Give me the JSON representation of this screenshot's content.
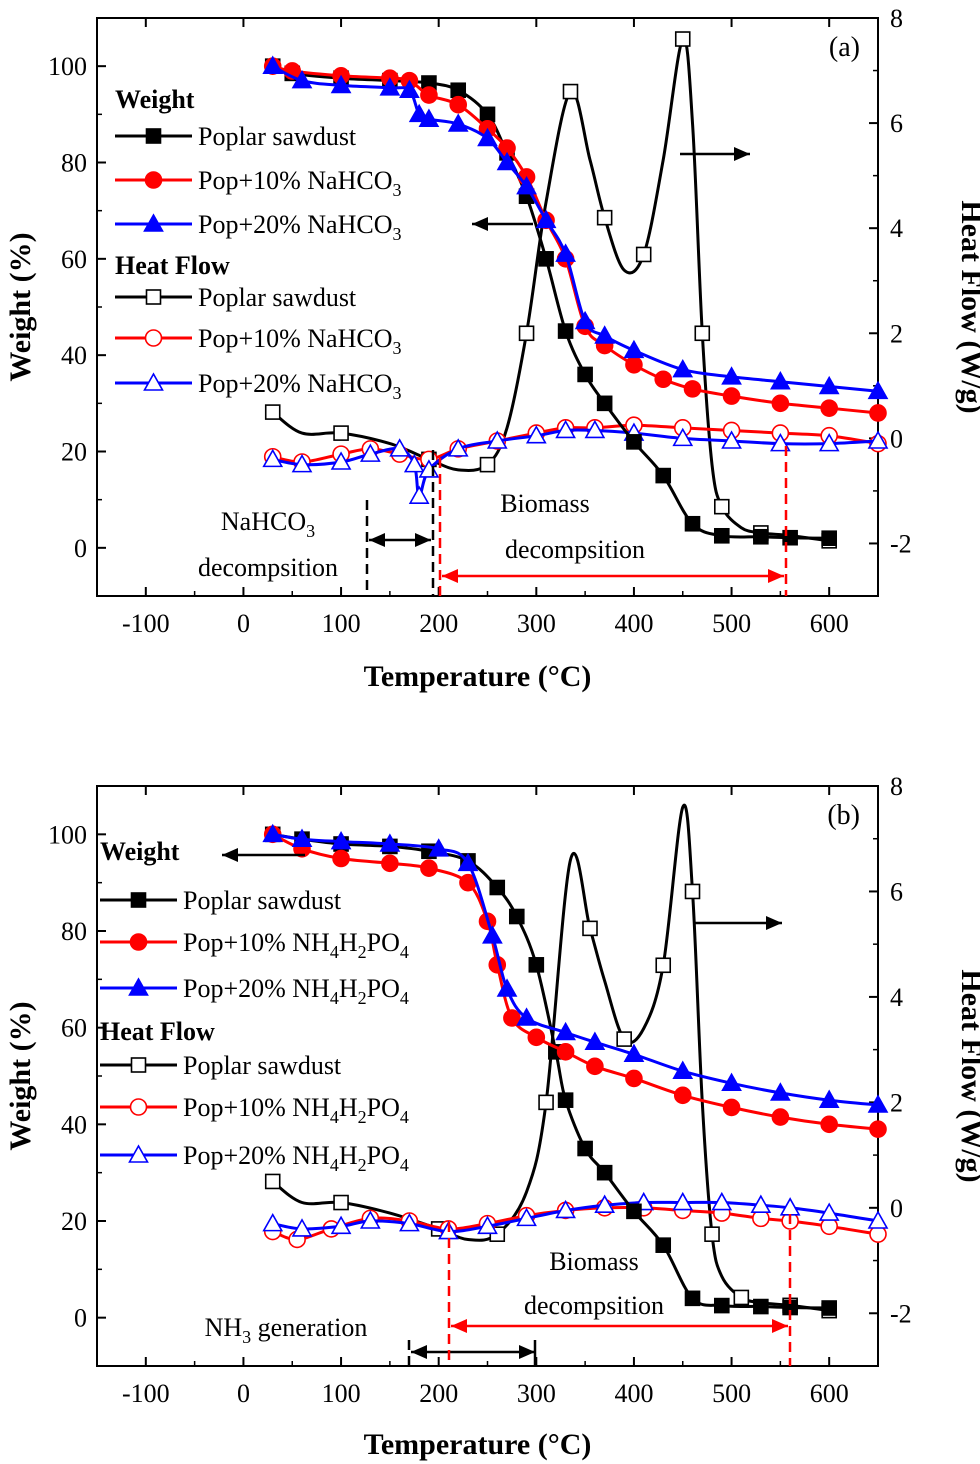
{
  "chart_data": [
    {
      "type": "line",
      "panel_label": "(a)",
      "xlabel": "Temperature (°C)",
      "ylabel": "Weight (%)",
      "y2label": "Heat Flow (W/g)",
      "xlim": [
        -150,
        650
      ],
      "ylim": [
        -10,
        110
      ],
      "y2lim": [
        -3,
        8
      ],
      "xticks": [
        "-100",
        "0",
        "100",
        "200",
        "300",
        "400",
        "500",
        "600"
      ],
      "yticks": [
        "0",
        "20",
        "40",
        "60",
        "80",
        "100"
      ],
      "y2ticks": [
        "-2",
        "0",
        "2",
        "4",
        "6",
        "8"
      ],
      "legend": {
        "weight_heading": "Weight",
        "heat_heading": "Heat Flow",
        "weight_entries": [
          "Poplar sawdust",
          "Pop+10% NaHCO",
          "Pop+20% NaHCO"
        ],
        "heat_entries": [
          "Poplar sawdust",
          "Pop+10% NaHCO",
          "Pop+20% NaHCO"
        ],
        "subscripts": [
          "",
          "3",
          "3"
        ]
      },
      "annotations": {
        "left_line1": "NaHCO",
        "left_line1_sub": "3",
        "left_line2": "decompsition",
        "right_line1": "Biomass",
        "right_line2": "decompsition"
      },
      "weight_series": [
        {
          "name": "Poplar sawdust",
          "color": "#000000",
          "marker": "square",
          "filled": true,
          "x": [
            30,
            50,
            100,
            150,
            190,
            220,
            250,
            270,
            290,
            310,
            330,
            350,
            370,
            400,
            430,
            460,
            490,
            530,
            560,
            600
          ],
          "y": [
            100,
            98.5,
            97.5,
            97,
            96.5,
            95,
            90,
            82,
            73,
            60,
            45,
            36,
            30,
            22,
            15,
            5,
            2.5,
            2.3,
            2.1,
            2
          ]
        },
        {
          "name": "Pop+10% NaHCO3",
          "color": "#ff0000",
          "marker": "circle",
          "filled": true,
          "x": [
            30,
            50,
            100,
            150,
            170,
            190,
            220,
            250,
            270,
            290,
            310,
            330,
            350,
            370,
            400,
            430,
            460,
            500,
            550,
            600,
            650
          ],
          "y": [
            100,
            99,
            98,
            97.5,
            97,
            94,
            92,
            87,
            83,
            77,
            68,
            60,
            46,
            42,
            38,
            35,
            33,
            31.5,
            30,
            29,
            28
          ]
        },
        {
          "name": "Pop+20% NaHCO3",
          "color": "#0000ff",
          "marker": "triangle",
          "filled": true,
          "x": [
            30,
            60,
            100,
            150,
            170,
            180,
            190,
            220,
            250,
            270,
            290,
            310,
            330,
            350,
            370,
            400,
            450,
            500,
            550,
            600,
            650
          ],
          "y": [
            100,
            97,
            96,
            95.5,
            95,
            90,
            89,
            88,
            85,
            80,
            75,
            68,
            61,
            47,
            44,
            41,
            37,
            35.5,
            34.5,
            33.5,
            32.5
          ]
        }
      ],
      "heat_series": [
        {
          "name": "Poplar sawdust",
          "color": "#000000",
          "marker": "square",
          "filled": false,
          "x": [
            30,
            60,
            100,
            150,
            190,
            220,
            250,
            270,
            290,
            310,
            335,
            355,
            370,
            390,
            410,
            430,
            450,
            460,
            470,
            480,
            490,
            510,
            530,
            560,
            600
          ],
          "y": [
            0.5,
            0.1,
            0.1,
            -0.1,
            -0.4,
            -0.6,
            -0.5,
            0.2,
            2,
            4.5,
            6.6,
            5.3,
            4.2,
            3.2,
            3.5,
            5.3,
            7.6,
            6.0,
            2.0,
            -0.5,
            -1.3,
            -1.7,
            -1.8,
            -1.85,
            -1.95
          ]
        },
        {
          "name": "Pop+10% NaHCO3",
          "color": "#ff0000",
          "marker": "circle",
          "filled": false,
          "x": [
            30,
            60,
            100,
            130,
            160,
            190,
            220,
            260,
            300,
            330,
            360,
            400,
            450,
            500,
            550,
            600,
            650
          ],
          "y": [
            -0.35,
            -0.45,
            -0.3,
            -0.2,
            -0.3,
            -0.4,
            -0.2,
            -0.05,
            0.1,
            0.2,
            0.2,
            0.25,
            0.2,
            0.15,
            0.1,
            0.05,
            -0.1
          ]
        },
        {
          "name": "Pop+20% NaHCO3",
          "color": "#0000ff",
          "marker": "triangle",
          "filled": false,
          "x": [
            30,
            60,
            100,
            130,
            160,
            175,
            180,
            190,
            220,
            260,
            300,
            330,
            360,
            400,
            450,
            500,
            550,
            600,
            650
          ],
          "y": [
            -0.4,
            -0.5,
            -0.45,
            -0.3,
            -0.2,
            -0.5,
            -1.1,
            -0.6,
            -0.2,
            -0.05,
            0.05,
            0.15,
            0.15,
            0.1,
            0.0,
            -0.05,
            -0.1,
            -0.1,
            -0.05
          ]
        }
      ]
    },
    {
      "type": "line",
      "panel_label": "(b)",
      "xlabel": "Temperature (°C)",
      "ylabel": "Weight (%)",
      "y2label": "Heat Flow (W/g)",
      "xlim": [
        -150,
        650
      ],
      "ylim": [
        -10,
        110
      ],
      "y2lim": [
        -3,
        8
      ],
      "xticks": [
        "-100",
        "0",
        "100",
        "200",
        "300",
        "400",
        "500",
        "600"
      ],
      "yticks": [
        "0",
        "20",
        "40",
        "60",
        "80",
        "100"
      ],
      "y2ticks": [
        "-2",
        "0",
        "2",
        "4",
        "6",
        "8"
      ],
      "legend": {
        "weight_heading": "Weight",
        "heat_heading": "Heat Flow",
        "weight_entries": [
          "Poplar sawdust",
          "Pop+10% NH",
          "Pop+20% NH"
        ],
        "heat_entries": [
          "Poplar sawdust",
          "Pop+10% NH",
          "Pop+20% NH"
        ],
        "formula_tail": [
          "",
          "4 H 2 PO 4",
          "4 H 2 PO 4"
        ]
      },
      "annotations": {
        "left_line1": "NH",
        "left_line1_sub": "3",
        "left_line1_tail": " generation",
        "right_line1": "Biomass",
        "right_line2": "decompsition"
      },
      "weight_series": [
        {
          "name": "Poplar sawdust",
          "color": "#000000",
          "marker": "square",
          "filled": true,
          "x": [
            30,
            60,
            100,
            150,
            190,
            230,
            260,
            280,
            300,
            320,
            330,
            350,
            370,
            400,
            430,
            460,
            490,
            530,
            560,
            600
          ],
          "y": [
            100,
            99,
            98,
            97.5,
            96.5,
            94.5,
            89,
            83,
            73,
            55,
            45,
            35,
            30,
            22,
            15,
            4,
            2.5,
            2.3,
            2.1,
            2
          ]
        },
        {
          "name": "Pop+10% NH4H2PO4",
          "color": "#ff0000",
          "marker": "circle",
          "filled": true,
          "x": [
            30,
            60,
            100,
            150,
            190,
            230,
            250,
            260,
            275,
            300,
            330,
            360,
            400,
            450,
            500,
            550,
            600,
            650
          ],
          "y": [
            100,
            97,
            95,
            94,
            93,
            90,
            82,
            73,
            62,
            58,
            55,
            52,
            49.5,
            46,
            43.5,
            41.5,
            40,
            39
          ]
        },
        {
          "name": "Pop+20% NH4H2PO4",
          "color": "#0000ff",
          "marker": "triangle",
          "filled": true,
          "x": [
            30,
            60,
            100,
            150,
            200,
            230,
            255,
            270,
            290,
            330,
            360,
            400,
            450,
            500,
            550,
            600,
            650
          ],
          "y": [
            100,
            99,
            98.5,
            98,
            97,
            94,
            79,
            68,
            62,
            59,
            57,
            54.5,
            51,
            48.5,
            46.5,
            45,
            44
          ]
        }
      ],
      "heat_series": [
        {
          "name": "Poplar sawdust",
          "color": "#000000",
          "marker": "square",
          "filled": false,
          "x": [
            30,
            60,
            100,
            150,
            200,
            230,
            260,
            290,
            310,
            335,
            355,
            370,
            390,
            410,
            430,
            450,
            460,
            470,
            480,
            490,
            510,
            530,
            560,
            600
          ],
          "y": [
            0.5,
            0.1,
            0.1,
            -0.1,
            -0.4,
            -0.6,
            -0.5,
            0.3,
            2,
            6.6,
            5.3,
            4.3,
            3.2,
            3.4,
            4.6,
            7.6,
            6.0,
            2.0,
            -0.5,
            -1.3,
            -1.7,
            -1.8,
            -1.85,
            -1.95
          ]
        },
        {
          "name": "Pop+10% NH4H2PO4",
          "color": "#ff0000",
          "marker": "circle",
          "filled": false,
          "x": [
            30,
            55,
            90,
            130,
            170,
            210,
            250,
            290,
            330,
            370,
            410,
            450,
            490,
            530,
            560,
            600,
            650
          ],
          "y": [
            -0.45,
            -0.6,
            -0.4,
            -0.2,
            -0.25,
            -0.4,
            -0.3,
            -0.15,
            -0.05,
            0.0,
            0.0,
            -0.05,
            -0.1,
            -0.2,
            -0.25,
            -0.35,
            -0.5
          ]
        },
        {
          "name": "Pop+20% NH4H2PO4",
          "color": "#0000ff",
          "marker": "triangle",
          "filled": false,
          "x": [
            30,
            60,
            100,
            130,
            170,
            210,
            250,
            290,
            330,
            370,
            410,
            450,
            490,
            530,
            560,
            600,
            650
          ],
          "y": [
            -0.3,
            -0.4,
            -0.35,
            -0.25,
            -0.3,
            -0.45,
            -0.35,
            -0.2,
            -0.05,
            0.05,
            0.1,
            0.1,
            0.1,
            0.05,
            0.0,
            -0.1,
            -0.25
          ]
        }
      ]
    }
  ]
}
